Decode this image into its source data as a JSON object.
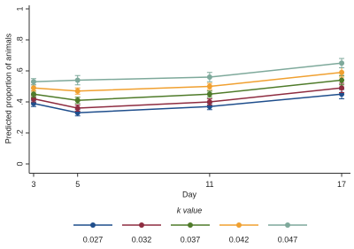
{
  "chart_data": {
    "type": "line",
    "x_label": "Day",
    "y_label": "Predicted proportion of animals",
    "legend_title": "k value",
    "x": [
      3,
      5,
      11,
      17
    ],
    "xlim": [
      2.8,
      17.4
    ],
    "xticks": [
      3,
      5,
      11,
      17
    ],
    "ylim": [
      -0.06,
      1
    ],
    "yticks": [
      0,
      {
        "value": 0.2,
        "label": ".2"
      },
      {
        "value": 0.4,
        "label": ".4"
      },
      {
        "value": 0.6,
        "label": ".6"
      },
      {
        "value": 0.8,
        "label": ".8"
      },
      1
    ],
    "legend_position": "bottom",
    "series": [
      {
        "name": "0.027",
        "color": "#1f4e8c",
        "values": [
          0.39,
          0.33,
          0.37,
          0.45
        ],
        "errors": [
          0.02,
          0.02,
          0.02,
          0.03
        ]
      },
      {
        "name": "0.032",
        "color": "#8e2c40",
        "values": [
          0.42,
          0.36,
          0.4,
          0.49
        ],
        "errors": [
          0.02,
          0.02,
          0.02,
          0.03
        ]
      },
      {
        "name": "0.037",
        "color": "#4f7b2a",
        "values": [
          0.45,
          0.41,
          0.45,
          0.54
        ],
        "errors": [
          0.02,
          0.02,
          0.02,
          0.03
        ]
      },
      {
        "name": "0.042",
        "color": "#f0a030",
        "values": [
          0.49,
          0.47,
          0.5,
          0.59
        ],
        "errors": [
          0.02,
          0.02,
          0.02,
          0.03
        ]
      },
      {
        "name": "0.047",
        "color": "#7ea99b",
        "values": [
          0.53,
          0.54,
          0.56,
          0.65
        ],
        "errors": [
          0.02,
          0.03,
          0.03,
          0.03
        ]
      }
    ]
  }
}
